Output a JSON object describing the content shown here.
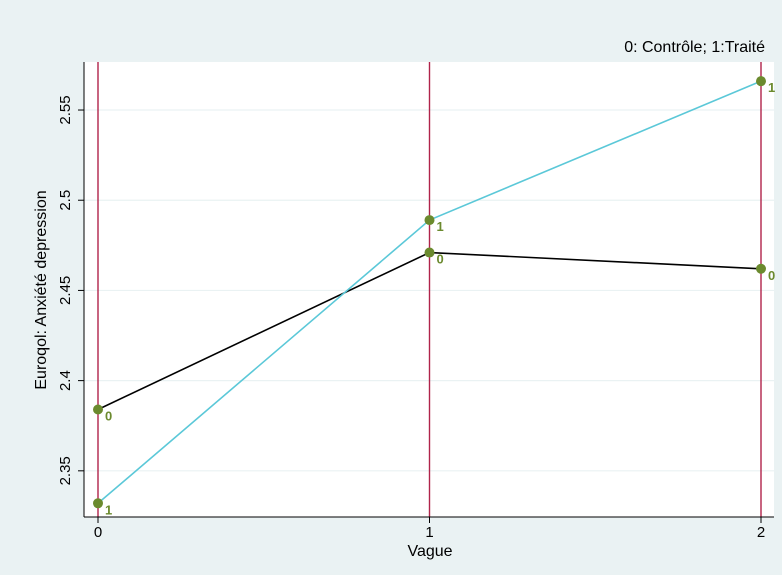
{
  "chart_data": {
    "type": "line",
    "note": "0: Contrôle; 1:Traité",
    "xlabel": "Vague",
    "ylabel": "Euroqol: Anxiété depression",
    "xlim": [
      0,
      2
    ],
    "ylim": [
      2.32,
      2.57
    ],
    "x_ticks": [
      "0",
      "1",
      "2"
    ],
    "y_ticks": [
      "2.35",
      "2.4",
      "2.45",
      "2.5",
      "2.55"
    ],
    "y_tick_values": [
      2.35,
      2.4,
      2.45,
      2.5,
      2.55
    ],
    "grid": true,
    "vertical_lines_at": [
      0,
      1,
      2
    ],
    "series": [
      {
        "label": "0",
        "color": "#000000",
        "x": [
          0,
          1,
          2
        ],
        "y": [
          2.384,
          2.471,
          2.462
        ]
      },
      {
        "label": "1",
        "color": "#5bc8d8",
        "x": [
          0,
          1,
          2
        ],
        "y": [
          2.332,
          2.489,
          2.566
        ]
      }
    ],
    "colors": {
      "background": "#eaf2f3",
      "plot": "#ffffff",
      "marker": "#6b8a2e",
      "vline": "#b0234a",
      "grid": "#eaf2f3"
    }
  }
}
